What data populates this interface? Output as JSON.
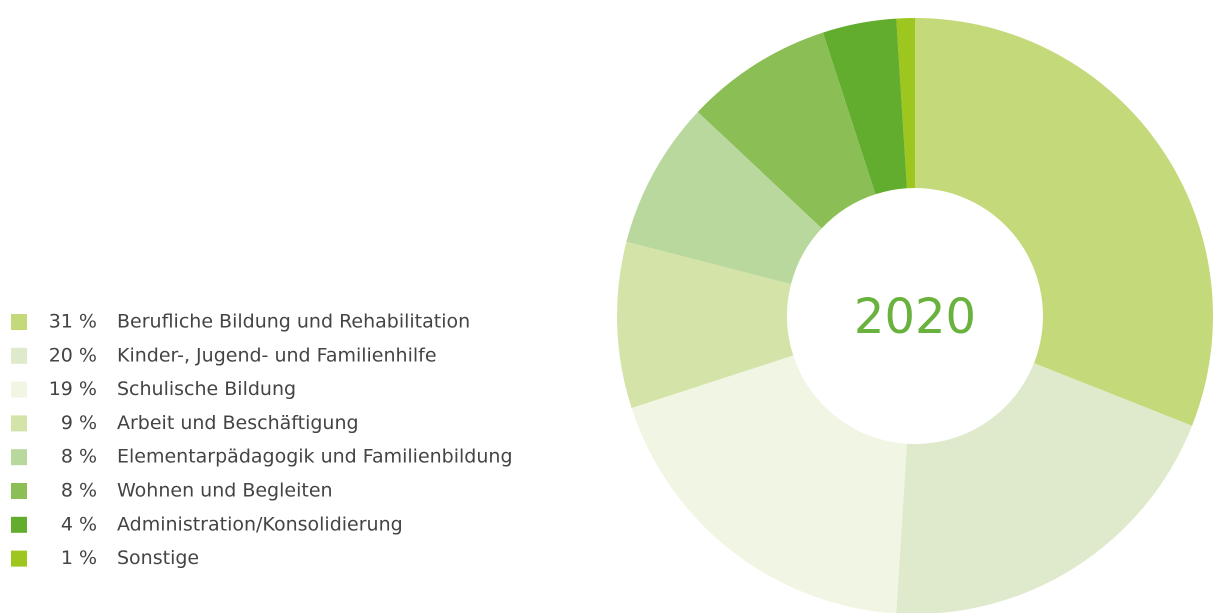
{
  "chart_data": {
    "type": "donut",
    "title": "2020",
    "categories": [
      "Berufliche Bildung und Rehabilitation",
      "Kinder-, Jugend- und Familienhilfe",
      "Schulische Bildung",
      "Arbeit und Beschäftigung",
      "Elementarpädagogik und Familienbildung",
      "Wohnen und Begleiten",
      "Administration/Konsolidierung",
      "Sonstige"
    ],
    "values": [
      31,
      20,
      19,
      9,
      8,
      8,
      4,
      1
    ],
    "value_labels": [
      "31 %",
      "20 %",
      "19 %",
      "9 %",
      "8 %",
      "8 %",
      "4 %",
      "1 %"
    ],
    "colors": [
      "#c4d97a",
      "#deeacb",
      "#f1f5e3",
      "#d4e4a9",
      "#b9d89e",
      "#8bbf56",
      "#63ad2e",
      "#9dc61e"
    ]
  }
}
